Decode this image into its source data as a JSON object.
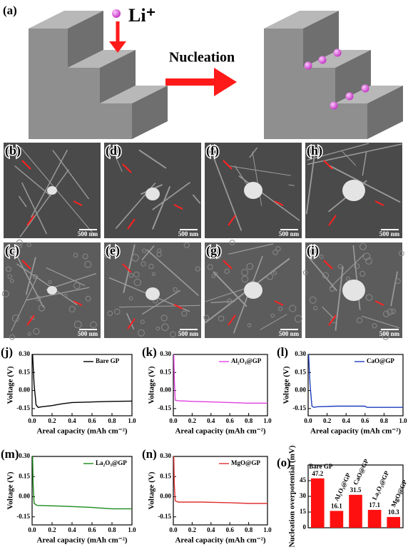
{
  "schematic": {
    "label": "(a)",
    "ion": "Li⁺",
    "arrow_text": "Nucleation"
  },
  "sem_panels": [
    {
      "label": "(b)",
      "scale": "500 nm"
    },
    {
      "label": "(c)",
      "scale": "500 nm"
    },
    {
      "label": "(d)",
      "scale": "500 nm"
    },
    {
      "label": "(e)",
      "scale": "500 nm"
    },
    {
      "label": "(f)",
      "scale": "500 nm"
    },
    {
      "label": "(g)",
      "scale": "500 nm"
    },
    {
      "label": "(h)",
      "scale": "500 nm"
    },
    {
      "label": "(i)",
      "scale": "500 nm"
    }
  ],
  "chart_data": [
    {
      "type": "line",
      "panel": "(j)",
      "xlabel": "Areal capacity (mAh cm⁻²)",
      "ylabel": "Voltage (V)",
      "x": [
        0.005,
        0.02,
        0.04,
        0.06,
        0.1,
        0.2,
        0.3,
        0.4,
        0.6,
        0.8,
        1.0
      ],
      "series": [
        {
          "name": "Bare GP",
          "color": "#000000",
          "values": [
            0.3,
            0.05,
            -0.12,
            -0.14,
            -0.135,
            -0.125,
            -0.11,
            -0.1,
            -0.095,
            -0.09,
            -0.088
          ]
        }
      ],
      "xlim": [
        0,
        1
      ],
      "xticks": [
        {
          "value": 0,
          "label": "0.0"
        },
        0.2,
        0.4,
        0.6,
        0.8,
        {
          "value": 1,
          "label": "1.0"
        }
      ],
      "ylim": [
        -0.21,
        0.3
      ],
      "yticks": [
        {
          "value": 0.3,
          "label": "0.30"
        },
        0.15,
        {
          "value": 0,
          "label": "0.00"
        },
        -0.15
      ],
      "legend": "upper right"
    },
    {
      "type": "line",
      "panel": "(k)",
      "xlabel": "Areal capacity (mAh cm⁻²)",
      "ylabel": "Voltage (V)",
      "x": [
        0.005,
        0.01,
        0.02,
        0.05,
        0.2,
        0.4,
        0.6,
        0.8,
        1.0
      ],
      "series": [
        {
          "name": "Al₂O₃@GP",
          "color": "#e040e0",
          "values": [
            0.3,
            0.1,
            -0.08,
            -0.085,
            -0.09,
            -0.095,
            -0.1,
            -0.105,
            -0.105
          ]
        }
      ],
      "xlim": [
        0,
        1
      ],
      "xticks": [
        {
          "value": 0,
          "label": "0.0"
        },
        0.2,
        0.4,
        0.6,
        0.8,
        {
          "value": 1,
          "label": "1.0"
        }
      ],
      "ylim": [
        -0.21,
        0.3
      ],
      "yticks": [
        {
          "value": 0.3,
          "label": "0.30"
        },
        0.15,
        {
          "value": 0,
          "label": "0.00"
        },
        -0.15
      ],
      "legend": "upper right"
    },
    {
      "type": "line",
      "panel": "(l)",
      "xlabel": "Areal capacity (mAh cm⁻²)",
      "ylabel": "Voltage (V)",
      "x": [
        0.005,
        0.02,
        0.04,
        0.06,
        0.1,
        0.3,
        0.6,
        0.62,
        1.0
      ],
      "series": [
        {
          "name": "CaO@GP",
          "color": "#1f3fbf",
          "values": [
            0.3,
            0.05,
            -0.13,
            -0.14,
            -0.135,
            -0.13,
            -0.13,
            -0.14,
            -0.14
          ]
        }
      ],
      "xlim": [
        0,
        1
      ],
      "xticks": [
        {
          "value": 0,
          "label": "0.0"
        },
        0.2,
        0.4,
        0.6,
        0.8,
        {
          "value": 1,
          "label": "1.0"
        }
      ],
      "ylim": [
        -0.21,
        0.3
      ],
      "yticks": [
        {
          "value": 0.3,
          "label": "0.30"
        },
        0.15,
        {
          "value": 0,
          "label": "0.00"
        },
        -0.15
      ],
      "legend": "upper right"
    },
    {
      "type": "line",
      "panel": "(m)",
      "xlabel": "Areal capacity (mAh cm⁻²)",
      "ylabel": "Voltage (V)",
      "x": [
        0.005,
        0.01,
        0.02,
        0.05,
        0.3,
        0.6,
        0.8,
        1.0
      ],
      "series": [
        {
          "name": "La₂O₃@GP",
          "color": "#1a8a1a",
          "values": [
            0.3,
            0.1,
            -0.05,
            -0.065,
            -0.07,
            -0.08,
            -0.09,
            -0.09
          ]
        }
      ],
      "xlim": [
        0,
        1
      ],
      "xticks": [
        {
          "value": 0,
          "label": "0.0"
        },
        0.2,
        0.4,
        0.6,
        0.8,
        {
          "value": 1,
          "label": "1.0"
        }
      ],
      "ylim": [
        -0.21,
        0.3
      ],
      "yticks": [
        {
          "value": 0.3,
          "label": "0.30"
        },
        0.15,
        {
          "value": 0,
          "label": "0.00"
        },
        -0.15
      ],
      "legend": "upper right"
    },
    {
      "type": "line",
      "panel": "(n)",
      "xlabel": "Areal capacity (mAh cm⁻²)",
      "ylabel": "Voltage (V)",
      "x": [
        0.005,
        0.01,
        0.02,
        0.05,
        0.3,
        0.6,
        0.8,
        1.0
      ],
      "series": [
        {
          "name": "MgO@GP",
          "color": "#e03030",
          "values": [
            0.3,
            0.1,
            -0.03,
            -0.04,
            -0.04,
            -0.045,
            -0.05,
            -0.05
          ]
        }
      ],
      "xlim": [
        0,
        1
      ],
      "xticks": [
        {
          "value": 0,
          "label": "0.0"
        },
        0.2,
        0.4,
        0.6,
        0.8,
        {
          "value": 1,
          "label": "1.0"
        }
      ],
      "ylim": [
        -0.21,
        0.3
      ],
      "yticks": [
        {
          "value": 0.3,
          "label": "0.30"
        },
        0.15,
        {
          "value": 0,
          "label": "0.00"
        },
        -0.15
      ],
      "legend": "upper right"
    },
    {
      "type": "bar",
      "panel": "(o)",
      "ylabel": "Nucleation overpotential (mV)",
      "categories": [
        "Bare GP",
        "Al₂O₃@GP",
        "CaO@GP",
        "La₂O₃@GP",
        "MgO@GP"
      ],
      "values": [
        47.2,
        16.1,
        31.5,
        17.1,
        10.3
      ],
      "color": "#ff1010",
      "ylim": [
        0,
        60
      ],
      "yticks": [
        0,
        15,
        30,
        45
      ]
    }
  ]
}
